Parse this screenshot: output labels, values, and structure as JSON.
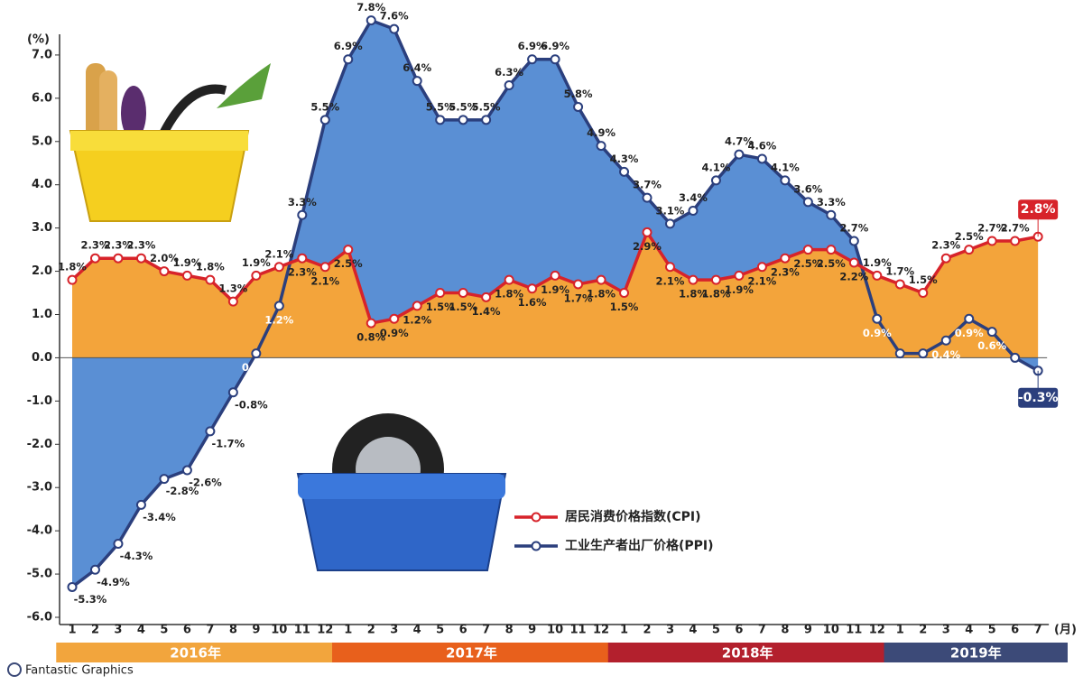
{
  "chart_data": {
    "type": "line",
    "y_unit_label": "(%)",
    "x_unit_label": "(月)",
    "categories": [
      "1",
      "2",
      "3",
      "4",
      "5",
      "6",
      "7",
      "8",
      "9",
      "10",
      "11",
      "12",
      "1",
      "2",
      "3",
      "4",
      "5",
      "6",
      "7",
      "8",
      "9",
      "10",
      "11",
      "12",
      "1",
      "2",
      "3",
      "4",
      "5",
      "6",
      "7",
      "8",
      "9",
      "10",
      "11",
      "12",
      "1",
      "2",
      "3",
      "4",
      "5",
      "6",
      "7"
    ],
    "year_groups": [
      {
        "label": "2016年",
        "color": "#f2a53d"
      },
      {
        "label": "2017年",
        "color": "#e8601c"
      },
      {
        "label": "2018年",
        "color": "#b3202d"
      },
      {
        "label": "2019年",
        "color": "#3c4a78"
      }
    ],
    "series": [
      {
        "name": "工业生产者出厂价格(PPI)",
        "color": "#2b3f7d",
        "fill": "#5a8fd4",
        "values": [
          -5.3,
          -4.9,
          -4.3,
          -3.4,
          -2.8,
          -2.6,
          -1.7,
          -0.8,
          0.1,
          1.2,
          3.3,
          5.5,
          6.9,
          7.8,
          7.6,
          6.4,
          5.5,
          5.5,
          5.5,
          6.3,
          6.9,
          6.9,
          5.8,
          4.9,
          4.3,
          3.7,
          3.1,
          3.4,
          4.1,
          4.7,
          4.6,
          4.1,
          3.6,
          3.3,
          2.7,
          0.9,
          0.1,
          0.1,
          0.4,
          0.9,
          0.6,
          0.0,
          -0.3
        ],
        "value_labels": [
          "-5.3%",
          "-4.9%",
          "-4.3%",
          "-3.4%",
          "-2.8%",
          "-2.6%",
          "-1.7%",
          "-0.8%",
          "0.1%",
          "1.2%",
          "3.3%",
          "5.5%",
          "6.9%",
          "7.8%",
          "7.6%",
          "6.4%",
          "5.5%",
          "5.5%",
          "5.5%",
          "6.3%",
          "6.9%",
          "6.9%",
          "5.8%",
          "4.9%",
          "4.3%",
          "3.7%",
          "3.1%",
          "3.4%",
          "4.1%",
          "4.7%",
          "4.6%",
          "4.1%",
          "3.6%",
          "3.3%",
          "2.7%",
          "0.9%",
          "0.1%",
          "0.1%",
          "0.4%",
          "0.9%",
          "0.6%",
          "0.0%",
          "-0.3%"
        ]
      },
      {
        "name": "居民消费价格指数(CPI)",
        "color": "#d7232a",
        "fill": "#f3a43b",
        "values": [
          1.8,
          2.3,
          2.3,
          2.3,
          2.0,
          1.9,
          1.8,
          1.3,
          1.9,
          2.1,
          2.3,
          2.1,
          2.5,
          0.8,
          0.9,
          1.2,
          1.5,
          1.5,
          1.4,
          1.8,
          1.6,
          1.9,
          1.7,
          1.8,
          1.5,
          2.9,
          2.1,
          1.8,
          1.8,
          1.9,
          2.1,
          2.3,
          2.5,
          2.5,
          2.2,
          1.9,
          1.7,
          1.5,
          2.3,
          2.5,
          2.7,
          2.7,
          2.8
        ],
        "value_labels": [
          "1.8%",
          "2.3%",
          "2.3%",
          "2.3%",
          "2.0%",
          "1.9%",
          "1.8%",
          "1.3%",
          "1.9%",
          "2.1%",
          "2.3%",
          "2.1%",
          "2.5%",
          "0.8%",
          "0.9%",
          "1.2%",
          "1.5%",
          "1.5%",
          "1.4%",
          "1.8%",
          "1.6%",
          "1.9%",
          "1.7%",
          "1.8%",
          "1.5%",
          "2.9%",
          "2.1%",
          "1.8%",
          "1.8%",
          "1.9%",
          "2.1%",
          "2.3%",
          "2.5%",
          "2.5%",
          "2.2%",
          "1.9%",
          "1.7%",
          "1.5%",
          "2.3%",
          "2.5%",
          "2.7%",
          "2.7%",
          "2.8%"
        ]
      }
    ],
    "ylim": [
      -6,
      8
    ],
    "yticks": [
      {
        "value": -6,
        "label": "-6.0"
      },
      {
        "value": -5,
        "label": "-5.0"
      },
      {
        "value": -4,
        "label": "-4.0"
      },
      {
        "value": -3,
        "label": "-3.0"
      },
      {
        "value": -2,
        "label": "-2.0"
      },
      {
        "value": -1,
        "label": "-1.0"
      },
      {
        "value": 0,
        "label": "0.0"
      },
      {
        "value": 1,
        "label": "1.0"
      },
      {
        "value": 2,
        "label": "2.0"
      },
      {
        "value": 3,
        "label": "3.0"
      },
      {
        "value": 4,
        "label": "4.0"
      },
      {
        "value": 5,
        "label": "5.0"
      },
      {
        "value": 6,
        "label": "6.0"
      },
      {
        "value": 7,
        "label": "7.0"
      }
    ],
    "source": "Fantastic Graphics"
  }
}
